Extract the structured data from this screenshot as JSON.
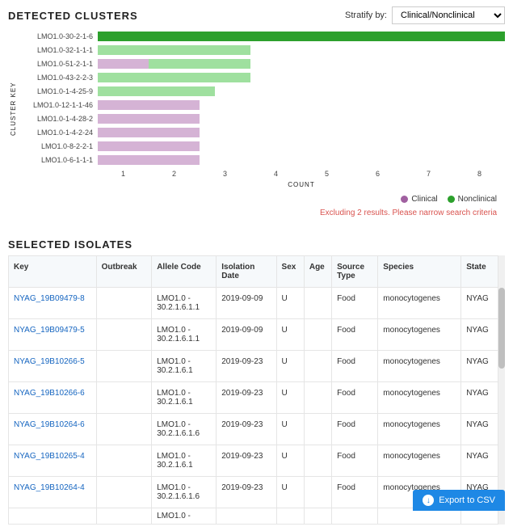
{
  "clusters": {
    "title": "DETECTED CLUSTERS",
    "stratify_label": "Stratify by:",
    "stratify_value": "Clinical/Nonclinical",
    "y_axis_label": "CLUSTER KEY",
    "x_axis_label": "COUNT",
    "x_max": 8,
    "x_ticks": [
      "1",
      "2",
      "3",
      "4",
      "5",
      "6",
      "7",
      "8"
    ],
    "colors": {
      "clinical": "#c9a0c9",
      "nonclinical": "#7fd67f",
      "nonclinical_dark": "#2ca02c"
    },
    "legend": [
      {
        "label": "Clinical",
        "color": "#a060a0"
      },
      {
        "label": "Nonclinical",
        "color": "#2ca02c"
      }
    ],
    "bars": [
      {
        "label": "LMO1.0-30-2-1-6",
        "segments": [
          {
            "value": 8,
            "color": "#2ca02c"
          }
        ]
      },
      {
        "label": "LMO1.0-32-1-1-1",
        "segments": [
          {
            "value": 3,
            "color": "#9fe09f"
          }
        ]
      },
      {
        "label": "LMO1.0-51-2-1-1",
        "segments": [
          {
            "value": 1,
            "color": "#d5b3d5"
          },
          {
            "value": 2,
            "color": "#9fe09f"
          }
        ]
      },
      {
        "label": "LMO1.0-43-2-2-3",
        "segments": [
          {
            "value": 3,
            "color": "#9fe09f"
          }
        ]
      },
      {
        "label": "LMO1.0-1-4-25-9",
        "segments": [
          {
            "value": 2.3,
            "color": "#9fe09f"
          }
        ]
      },
      {
        "label": "LMO1.0-12-1-1-46",
        "segments": [
          {
            "value": 2,
            "color": "#d5b3d5"
          }
        ]
      },
      {
        "label": "LMO1.0-1-4-28-2",
        "segments": [
          {
            "value": 2,
            "color": "#d5b3d5"
          }
        ]
      },
      {
        "label": "LMO1.0-1-4-2-24",
        "segments": [
          {
            "value": 2,
            "color": "#d5b3d5"
          }
        ]
      },
      {
        "label": "LMO1.0-8-2-2-1",
        "segments": [
          {
            "value": 2,
            "color": "#d5b3d5"
          }
        ]
      },
      {
        "label": "LMO1.0-6-1-1-1",
        "segments": [
          {
            "value": 2,
            "color": "#d5b3d5"
          }
        ]
      }
    ],
    "warning": "Excluding 2 results. Please narrow search criteria"
  },
  "isolates": {
    "title": "SELECTED ISOLATES",
    "columns": [
      "Key",
      "Outbreak",
      "Allele Code",
      "Isolation Date",
      "Sex",
      "Age",
      "Source Type",
      "Species",
      "State"
    ],
    "col_widths": [
      "95",
      "60",
      "70",
      "65",
      "30",
      "30",
      "50",
      "90",
      "40"
    ],
    "rows": [
      {
        "key": "NYAG_19B09479-8",
        "outbreak": "",
        "allele": "LMO1.0 - 30.2.1.6.1.1",
        "date": "2019-09-09",
        "sex": "U",
        "age": "",
        "source": "Food",
        "species": "monocytogenes",
        "state": "NYAG"
      },
      {
        "key": "NYAG_19B09479-5",
        "outbreak": "",
        "allele": "LMO1.0 - 30.2.1.6.1.1",
        "date": "2019-09-09",
        "sex": "U",
        "age": "",
        "source": "Food",
        "species": "monocytogenes",
        "state": "NYAG"
      },
      {
        "key": "NYAG_19B10266-5",
        "outbreak": "",
        "allele": "LMO1.0 - 30.2.1.6.1",
        "date": "2019-09-23",
        "sex": "U",
        "age": "",
        "source": "Food",
        "species": "monocytogenes",
        "state": "NYAG"
      },
      {
        "key": "NYAG_19B10266-6",
        "outbreak": "",
        "allele": "LMO1.0 - 30.2.1.6.1",
        "date": "2019-09-23",
        "sex": "U",
        "age": "",
        "source": "Food",
        "species": "monocytogenes",
        "state": "NYAG"
      },
      {
        "key": "NYAG_19B10264-6",
        "outbreak": "",
        "allele": "LMO1.0 - 30.2.1.6.1.6",
        "date": "2019-09-23",
        "sex": "U",
        "age": "",
        "source": "Food",
        "species": "monocytogenes",
        "state": "NYAG"
      },
      {
        "key": "NYAG_19B10265-4",
        "outbreak": "",
        "allele": "LMO1.0 - 30.2.1.6.1",
        "date": "2019-09-23",
        "sex": "U",
        "age": "",
        "source": "Food",
        "species": "monocytogenes",
        "state": "NYAG"
      },
      {
        "key": "NYAG_19B10264-4",
        "outbreak": "",
        "allele": "LMO1.0 - 30.2.1.6.1.6",
        "date": "2019-09-23",
        "sex": "U",
        "age": "",
        "source": "Food",
        "species": "monocytogenes",
        "state": "NYAG"
      }
    ],
    "partial_row_allele": "LMO1.0 -"
  },
  "export_label": "Export to CSV"
}
